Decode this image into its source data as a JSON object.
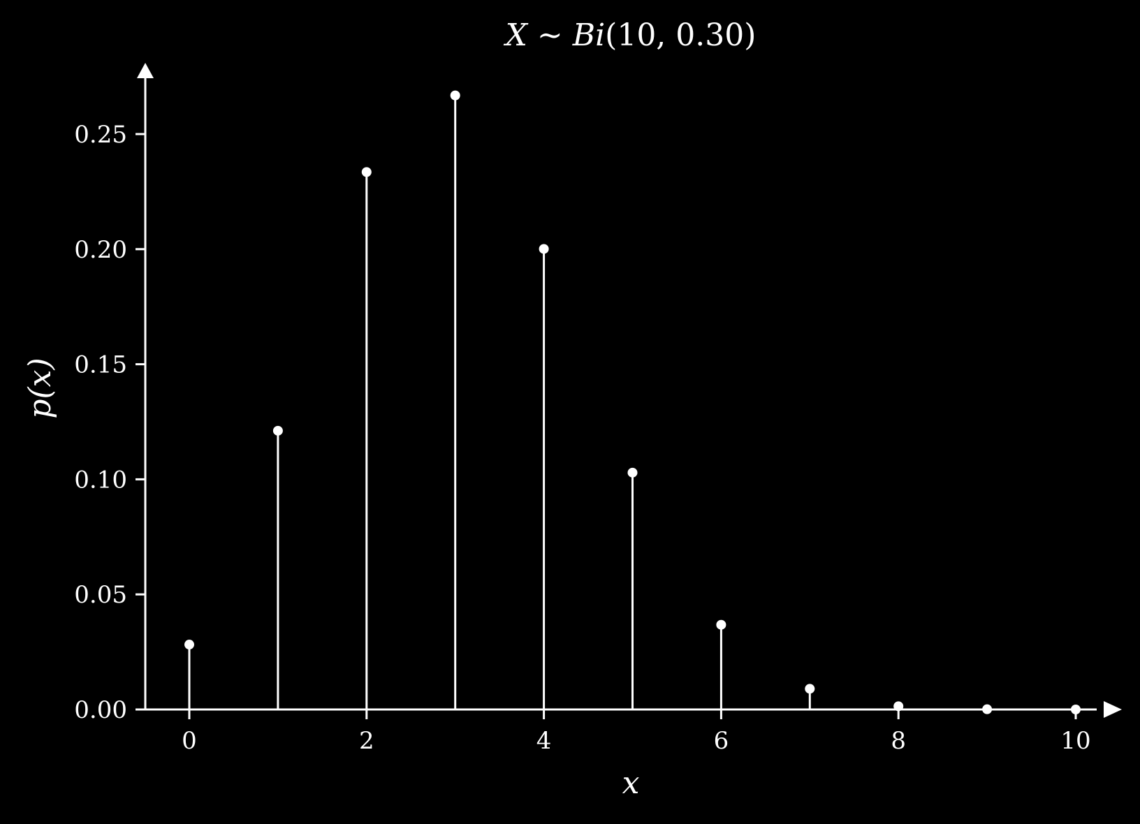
{
  "chart_data": {
    "type": "stem",
    "title_parts": [
      {
        "text": "X",
        "italic": true
      },
      {
        "text": " ∼ ",
        "italic": false
      },
      {
        "text": "Bi",
        "italic": true
      },
      {
        "text": "(10, 0.30)",
        "italic": false
      }
    ],
    "xlabel": "x",
    "ylabel": "p(x)",
    "xlim": [
      -0.5,
      10.5
    ],
    "ylim": [
      0,
      0.275
    ],
    "x_ticks": [
      0,
      2,
      4,
      6,
      8,
      10
    ],
    "x_tick_labels": [
      "0",
      "2",
      "4",
      "6",
      "8",
      "10"
    ],
    "y_ticks": [
      0,
      0.05,
      0.1,
      0.15,
      0.2,
      0.25
    ],
    "y_tick_labels": [
      "0.00",
      "0.05",
      "0.10",
      "0.15",
      "0.20",
      "0.25"
    ],
    "grid": false,
    "x": [
      0,
      1,
      2,
      3,
      4,
      5,
      6,
      7,
      8,
      9,
      10
    ],
    "values": [
      0.0282,
      0.1211,
      0.2335,
      0.2668,
      0.2001,
      0.1029,
      0.0368,
      0.009,
      0.0014,
      0.0001,
      0.0
    ],
    "colors": {
      "background": "#000000",
      "foreground": "#ffffff"
    }
  }
}
